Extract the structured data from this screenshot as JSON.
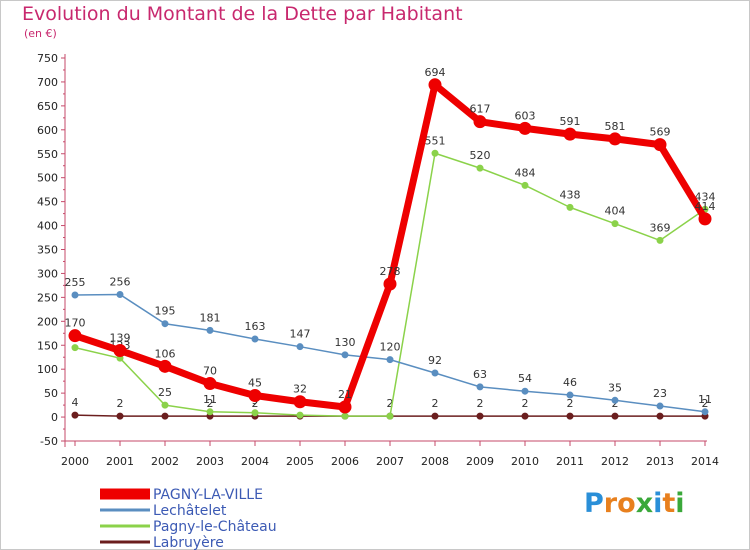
{
  "title": "Evolution du Montant de la Dette par Habitant",
  "subtitle": "(en €)",
  "logo": {
    "text": "Proxiti",
    "letters": [
      "P",
      "r",
      "o",
      "x",
      "i",
      "t",
      "i"
    ],
    "letter_colors": [
      "#2a8fd8",
      "#e8801e",
      "#e8801e",
      "#3aa83a",
      "#2a8fd8",
      "#e8801e",
      "#3aa83a"
    ]
  },
  "chart_data": {
    "type": "line",
    "x": [
      2000,
      2001,
      2002,
      2003,
      2004,
      2005,
      2006,
      2007,
      2008,
      2009,
      2010,
      2011,
      2012,
      2013,
      2014
    ],
    "ylim": [
      -50,
      750
    ],
    "yticks": [
      -50,
      0,
      50,
      100,
      150,
      200,
      250,
      300,
      350,
      400,
      450,
      500,
      550,
      600,
      650,
      700,
      750
    ],
    "grid": false,
    "legend_position": "bottom-left",
    "series": [
      {
        "name": "Labruyère",
        "color": "#6b1e1e",
        "width": 1.5,
        "marker_r": 3,
        "values": [
          4,
          2,
          2,
          2,
          2,
          2,
          2,
          2,
          2,
          2,
          2,
          2,
          2,
          2,
          2
        ],
        "labels": [
          "4",
          "2",
          "",
          "2",
          "2",
          "",
          "",
          "2",
          "2",
          "2",
          "2",
          "2",
          "2",
          "",
          "2"
        ]
      },
      {
        "name": "Pagny-le-Château",
        "color": "#8bd24a",
        "width": 1.5,
        "marker_r": 3,
        "values": [
          145,
          123,
          25,
          11,
          9,
          4,
          2,
          2,
          551,
          520,
          484,
          438,
          404,
          369,
          434
        ],
        "labels": [
          "",
          "123",
          "25",
          "11",
          "9",
          "",
          "",
          "",
          "551",
          "520",
          "484",
          "438",
          "404",
          "369",
          "434"
        ]
      },
      {
        "name": "Lechâtelet",
        "color": "#5a8ec0",
        "width": 1.5,
        "marker_r": 3,
        "values": [
          255,
          256,
          195,
          181,
          163,
          147,
          130,
          120,
          92,
          63,
          54,
          46,
          35,
          23,
          11
        ],
        "labels": [
          "255",
          "256",
          "195",
          "181",
          "163",
          "147",
          "130",
          "120",
          "92",
          "63",
          "54",
          "46",
          "35",
          "23",
          "11"
        ]
      },
      {
        "name": "PAGNY-LA-VILLE",
        "color": "#ee0000",
        "width": 7,
        "marker_r": 6,
        "values": [
          170,
          139,
          106,
          70,
          45,
          32,
          21,
          278,
          694,
          617,
          603,
          591,
          581,
          569,
          414
        ],
        "labels": [
          "170",
          "139",
          "106",
          "70",
          "45",
          "32",
          "21",
          "278",
          "694",
          "617",
          "603",
          "591",
          "581",
          "569",
          "414"
        ]
      }
    ],
    "legend": [
      "PAGNY-LA-VILLE",
      "Lechâtelet",
      "Pagny-le-Château",
      "Labruyère"
    ]
  }
}
